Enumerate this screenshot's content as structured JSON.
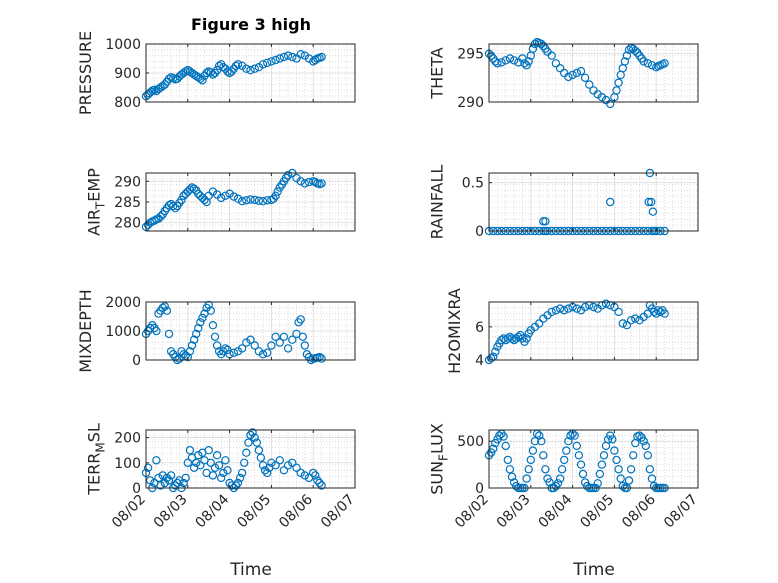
{
  "figure": {
    "title": "Figure 3 high",
    "marker_color": "#0072bd",
    "x_ticks": [
      "08/02",
      "08/03",
      "08/04",
      "08/05",
      "08/06",
      "08/07"
    ],
    "x_label": "Time"
  },
  "chart_data": [
    {
      "type": "scatter",
      "ylabel": "PRESSURE",
      "xlim": [
        0,
        5
      ],
      "ylim": [
        800,
        1000
      ],
      "yticks": [
        "800",
        "900",
        "1000"
      ],
      "ytick_values": [
        800,
        900,
        1000
      ],
      "grid": true,
      "x": [
        0.0,
        0.04,
        0.08,
        0.12,
        0.16,
        0.2,
        0.25,
        0.3,
        0.35,
        0.4,
        0.45,
        0.5,
        0.55,
        0.6,
        0.65,
        0.7,
        0.75,
        0.8,
        0.85,
        0.9,
        0.95,
        1.0,
        1.05,
        1.1,
        1.15,
        1.2,
        1.25,
        1.3,
        1.35,
        1.4,
        1.45,
        1.5,
        1.55,
        1.6,
        1.65,
        1.7,
        1.75,
        1.8,
        1.85,
        1.9,
        1.95,
        2.0,
        2.05,
        2.1,
        2.15,
        2.2,
        2.3,
        2.4,
        2.5,
        2.6,
        2.7,
        2.8,
        2.9,
        3.0,
        3.1,
        3.2,
        3.3,
        3.4,
        3.5,
        3.6,
        3.7,
        3.8,
        3.9,
        4.0,
        4.05,
        4.1,
        4.15,
        4.2
      ],
      "y": [
        820,
        825,
        830,
        835,
        840,
        842,
        838,
        845,
        850,
        855,
        860,
        870,
        880,
        885,
        882,
        878,
        880,
        888,
        895,
        900,
        905,
        910,
        905,
        900,
        895,
        890,
        885,
        880,
        875,
        890,
        900,
        905,
        902,
        895,
        900,
        910,
        925,
        930,
        920,
        915,
        905,
        900,
        905,
        915,
        925,
        930,
        925,
        915,
        910,
        915,
        920,
        930,
        935,
        940,
        945,
        950,
        955,
        960,
        955,
        950,
        965,
        960,
        950,
        940,
        945,
        950,
        952,
        955
      ]
    },
    {
      "type": "scatter",
      "ylabel": "THETA",
      "xlim": [
        0,
        5
      ],
      "ylim": [
        290,
        296
      ],
      "yticks": [
        "290",
        "295"
      ],
      "ytick_values": [
        290,
        295
      ],
      "grid": true,
      "x": [
        0.0,
        0.05,
        0.1,
        0.15,
        0.2,
        0.3,
        0.4,
        0.5,
        0.6,
        0.7,
        0.8,
        0.85,
        0.9,
        0.95,
        1.0,
        1.05,
        1.1,
        1.15,
        1.2,
        1.25,
        1.3,
        1.35,
        1.4,
        1.5,
        1.6,
        1.7,
        1.8,
        1.9,
        2.0,
        2.1,
        2.2,
        2.3,
        2.4,
        2.5,
        2.6,
        2.7,
        2.8,
        2.9,
        3.0,
        3.05,
        3.1,
        3.15,
        3.2,
        3.25,
        3.3,
        3.35,
        3.4,
        3.45,
        3.5,
        3.55,
        3.6,
        3.65,
        3.7,
        3.8,
        3.9,
        4.0,
        4.05,
        4.1,
        4.15,
        4.2
      ],
      "y": [
        295,
        294.8,
        294.5,
        294.2,
        294,
        294.1,
        294.3,
        294.5,
        294.3,
        294.1,
        294.5,
        294,
        293.8,
        294.2,
        294.8,
        295.5,
        296,
        296.2,
        296.1,
        296,
        295.8,
        295.5,
        295.2,
        294.8,
        294,
        293.5,
        293,
        292.6,
        292.8,
        293,
        293.2,
        292.5,
        291.8,
        291.2,
        290.8,
        290.5,
        290.2,
        289.8,
        290.5,
        291.2,
        292,
        292.8,
        293.5,
        294.2,
        294.8,
        295.4,
        295.6,
        295.5,
        295.3,
        295.1,
        294.8,
        294.5,
        294.2,
        294,
        293.8,
        293.6,
        293.7,
        293.8,
        293.9,
        294
      ]
    },
    {
      "type": "scatter",
      "ylabel": "AIR",
      "ylabel_sub": "T",
      "ylabel_rest": "EMP",
      "xlim": [
        0,
        5
      ],
      "ylim": [
        278,
        292
      ],
      "yticks": [
        "280",
        "285",
        "290"
      ],
      "ytick_values": [
        280,
        285,
        290
      ],
      "grid": true,
      "x": [
        0.0,
        0.05,
        0.1,
        0.15,
        0.2,
        0.25,
        0.3,
        0.35,
        0.4,
        0.45,
        0.5,
        0.55,
        0.6,
        0.65,
        0.7,
        0.75,
        0.8,
        0.85,
        0.9,
        0.95,
        1.0,
        1.05,
        1.1,
        1.15,
        1.2,
        1.25,
        1.3,
        1.35,
        1.4,
        1.45,
        1.5,
        1.6,
        1.7,
        1.8,
        1.9,
        2.0,
        2.1,
        2.2,
        2.3,
        2.4,
        2.5,
        2.6,
        2.7,
        2.8,
        2.9,
        3.0,
        3.05,
        3.1,
        3.15,
        3.2,
        3.25,
        3.3,
        3.35,
        3.4,
        3.5,
        3.6,
        3.7,
        3.8,
        3.9,
        4.0,
        4.05,
        4.1,
        4.15,
        4.2
      ],
      "y": [
        279,
        279.5,
        280,
        280.3,
        280.5,
        280.8,
        281,
        281.5,
        282,
        282.8,
        283.5,
        284.2,
        284.5,
        284,
        283.5,
        284,
        284.8,
        285.5,
        286.5,
        287,
        287.5,
        288,
        288.5,
        288.2,
        287.8,
        287,
        286.5,
        286,
        285.5,
        285,
        286.5,
        287.5,
        286.8,
        286,
        286.5,
        287,
        286.3,
        285.8,
        285.2,
        285.4,
        285.6,
        285.5,
        285.3,
        285.2,
        285.4,
        285.5,
        285.8,
        286.5,
        287.5,
        288.5,
        289.2,
        290,
        290.8,
        291.5,
        292,
        290.8,
        290,
        289.5,
        289.8,
        290,
        289.8,
        289.5,
        289.3,
        289.5
      ]
    },
    {
      "type": "scatter",
      "ylabel": "RAINFALL",
      "xlim": [
        0,
        5
      ],
      "ylim": [
        0,
        0.6
      ],
      "yticks": [
        "0",
        "0.5"
      ],
      "ytick_values": [
        0,
        0.5
      ],
      "grid": true,
      "x": [
        0.0,
        0.1,
        0.2,
        0.3,
        0.4,
        0.5,
        0.6,
        0.7,
        0.8,
        0.9,
        1.0,
        1.1,
        1.2,
        1.3,
        1.35,
        1.4,
        1.5,
        1.6,
        1.7,
        1.8,
        1.9,
        2.0,
        2.1,
        2.2,
        2.3,
        2.4,
        2.5,
        2.6,
        2.7,
        2.8,
        2.9,
        3.0,
        3.1,
        3.2,
        3.3,
        3.4,
        3.5,
        3.6,
        3.7,
        3.8,
        3.9,
        4.0,
        4.1,
        4.2,
        1.3,
        1.35,
        2.9,
        3.82,
        3.85,
        3.88,
        3.92,
        3.95
      ],
      "y": [
        0,
        0,
        0,
        0,
        0,
        0,
        0,
        0,
        0,
        0,
        0,
        0,
        0,
        0,
        0,
        0,
        0,
        0,
        0,
        0,
        0,
        0,
        0,
        0,
        0,
        0,
        0,
        0,
        0,
        0,
        0,
        0,
        0,
        0,
        0,
        0,
        0,
        0,
        0,
        0,
        0,
        0,
        0,
        0,
        0.1,
        0.1,
        0.3,
        0.3,
        0.6,
        0.3,
        0.2,
        0
      ]
    },
    {
      "type": "scatter",
      "ylabel": "MIXDEPTH",
      "xlim": [
        0,
        5
      ],
      "ylim": [
        0,
        2000
      ],
      "yticks": [
        "0",
        "1000",
        "2000"
      ],
      "ytick_values": [
        0,
        1000,
        2000
      ],
      "grid": true,
      "x": [
        0.0,
        0.05,
        0.1,
        0.15,
        0.2,
        0.25,
        0.3,
        0.35,
        0.4,
        0.45,
        0.5,
        0.55,
        0.6,
        0.65,
        0.7,
        0.75,
        0.8,
        0.85,
        0.9,
        0.95,
        1.0,
        1.05,
        1.1,
        1.15,
        1.2,
        1.25,
        1.3,
        1.35,
        1.4,
        1.45,
        1.5,
        1.55,
        1.6,
        1.65,
        1.7,
        1.75,
        1.8,
        1.85,
        1.9,
        1.95,
        2.0,
        2.1,
        2.2,
        2.3,
        2.4,
        2.5,
        2.6,
        2.7,
        2.8,
        2.9,
        3.0,
        3.1,
        3.2,
        3.3,
        3.4,
        3.5,
        3.6,
        3.65,
        3.7,
        3.75,
        3.8,
        3.85,
        3.9,
        3.95,
        4.0,
        4.05,
        4.1,
        4.15,
        4.2
      ],
      "y": [
        900,
        1000,
        1100,
        1200,
        1100,
        1000,
        1600,
        1700,
        1800,
        1850,
        1700,
        900,
        300,
        200,
        100,
        0,
        50,
        300,
        200,
        150,
        100,
        300,
        500,
        700,
        900,
        1100,
        1300,
        1450,
        1600,
        1800,
        1900,
        1700,
        1200,
        800,
        500,
        300,
        200,
        300,
        400,
        350,
        200,
        250,
        300,
        400,
        600,
        700,
        500,
        300,
        200,
        250,
        500,
        800,
        600,
        800,
        400,
        700,
        900,
        1300,
        1400,
        800,
        500,
        200,
        100,
        0,
        50,
        60,
        80,
        100,
        50
      ]
    },
    {
      "type": "scatter",
      "ylabel": "H2OMIXRA",
      "xlim": [
        0,
        5
      ],
      "ylim": [
        4,
        7.5
      ],
      "yticks": [
        "4",
        "6"
      ],
      "ytick_values": [
        4,
        6
      ],
      "grid": true,
      "x": [
        0.0,
        0.05,
        0.1,
        0.15,
        0.2,
        0.25,
        0.3,
        0.35,
        0.4,
        0.45,
        0.5,
        0.55,
        0.6,
        0.65,
        0.7,
        0.75,
        0.8,
        0.85,
        0.9,
        0.95,
        1.0,
        1.1,
        1.2,
        1.3,
        1.4,
        1.5,
        1.6,
        1.7,
        1.8,
        1.9,
        2.0,
        2.1,
        2.2,
        2.3,
        2.4,
        2.5,
        2.6,
        2.7,
        2.8,
        2.9,
        3.0,
        3.1,
        3.2,
        3.3,
        3.4,
        3.5,
        3.6,
        3.7,
        3.8,
        3.85,
        3.9,
        3.95,
        4.0,
        4.05,
        4.1,
        4.15,
        4.2
      ],
      "y": [
        4,
        4.1,
        4.2,
        4.5,
        4.8,
        5.0,
        5.2,
        5.3,
        5.2,
        5.3,
        5.4,
        5.3,
        5.2,
        5.3,
        5.4,
        5.5,
        5.3,
        5.1,
        5.3,
        5.6,
        5.8,
        6.0,
        6.2,
        6.5,
        6.7,
        6.9,
        7.0,
        7.1,
        7.0,
        7.1,
        7.2,
        7.1,
        7.0,
        7.2,
        7.3,
        7.2,
        7.1,
        7.3,
        7.4,
        7.3,
        7.2,
        6.9,
        6.2,
        6.1,
        6.4,
        6.5,
        6.4,
        6.6,
        6.8,
        7.3,
        7.1,
        6.9,
        6.8,
        7.0,
        6.9,
        7.0,
        6.8
      ]
    },
    {
      "type": "scatter",
      "ylabel": "TERR",
      "ylabel_sub": "M",
      "ylabel_rest": "SL",
      "xlim": [
        0,
        5
      ],
      "ylim": [
        0,
        230
      ],
      "yticks": [
        "0",
        "100",
        "200"
      ],
      "ytick_values": [
        0,
        100,
        200
      ],
      "grid": true,
      "x": [
        0.0,
        0.05,
        0.1,
        0.15,
        0.2,
        0.25,
        0.3,
        0.35,
        0.4,
        0.45,
        0.5,
        0.55,
        0.6,
        0.65,
        0.7,
        0.75,
        0.8,
        0.85,
        0.9,
        0.95,
        1.0,
        1.05,
        1.1,
        1.15,
        1.2,
        1.25,
        1.3,
        1.35,
        1.4,
        1.45,
        1.5,
        1.55,
        1.6,
        1.65,
        1.7,
        1.75,
        1.8,
        1.85,
        1.9,
        1.95,
        2.0,
        2.05,
        2.1,
        2.15,
        2.2,
        2.25,
        2.3,
        2.35,
        2.4,
        2.45,
        2.5,
        2.55,
        2.6,
        2.65,
        2.7,
        2.75,
        2.8,
        2.85,
        2.9,
        2.95,
        3.0,
        3.1,
        3.2,
        3.3,
        3.4,
        3.5,
        3.6,
        3.7,
        3.8,
        3.9,
        4.0,
        4.05,
        4.1,
        4.15,
        4.2
      ],
      "y": [
        60,
        80,
        30,
        0,
        20,
        110,
        40,
        10,
        50,
        20,
        40,
        30,
        50,
        0,
        10,
        20,
        30,
        0,
        20,
        40,
        100,
        150,
        120,
        80,
        100,
        130,
        90,
        140,
        110,
        60,
        150,
        100,
        50,
        80,
        130,
        90,
        40,
        60,
        110,
        70,
        20,
        10,
        0,
        10,
        20,
        40,
        60,
        100,
        140,
        180,
        210,
        220,
        200,
        180,
        150,
        120,
        90,
        70,
        60,
        80,
        100,
        90,
        110,
        70,
        90,
        100,
        80,
        60,
        50,
        40,
        60,
        50,
        30,
        20,
        10
      ]
    },
    {
      "type": "scatter",
      "ylabel": "SUN",
      "ylabel_sub": "F",
      "ylabel_rest": "LUX",
      "xlim": [
        0,
        5
      ],
      "ylim": [
        0,
        620
      ],
      "yticks": [
        "0",
        "500"
      ],
      "ytick_values": [
        0,
        500
      ],
      "grid": true,
      "x": [
        0.0,
        0.05,
        0.1,
        0.15,
        0.2,
        0.25,
        0.3,
        0.35,
        0.4,
        0.45,
        0.5,
        0.55,
        0.6,
        0.65,
        0.7,
        0.75,
        0.8,
        0.85,
        0.9,
        0.95,
        1.0,
        1.05,
        1.1,
        1.15,
        1.2,
        1.25,
        1.3,
        1.35,
        1.4,
        1.45,
        1.5,
        1.55,
        1.6,
        1.65,
        1.7,
        1.75,
        1.8,
        1.85,
        1.9,
        1.95,
        2.0,
        2.05,
        2.1,
        2.15,
        2.2,
        2.25,
        2.3,
        2.35,
        2.4,
        2.45,
        2.5,
        2.55,
        2.6,
        2.65,
        2.7,
        2.75,
        2.8,
        2.85,
        2.9,
        2.95,
        3.0,
        3.05,
        3.1,
        3.15,
        3.2,
        3.25,
        3.3,
        3.35,
        3.4,
        3.45,
        3.5,
        3.55,
        3.6,
        3.65,
        3.7,
        3.75,
        3.8,
        3.85,
        3.9,
        3.95,
        4.0,
        4.05,
        4.1,
        4.15,
        4.2
      ],
      "y": [
        350,
        380,
        420,
        480,
        520,
        560,
        580,
        550,
        450,
        300,
        200,
        120,
        60,
        20,
        0,
        0,
        0,
        0,
        100,
        200,
        300,
        400,
        500,
        580,
        560,
        500,
        350,
        200,
        100,
        60,
        0,
        0,
        20,
        50,
        100,
        200,
        300,
        400,
        500,
        560,
        580,
        560,
        450,
        350,
        250,
        150,
        60,
        20,
        0,
        0,
        0,
        0,
        50,
        150,
        250,
        350,
        450,
        520,
        560,
        520,
        400,
        300,
        200,
        100,
        20,
        0,
        0,
        80,
        200,
        350,
        480,
        550,
        560,
        540,
        500,
        450,
        350,
        200,
        100,
        20,
        0,
        0,
        0,
        0,
        0
      ]
    }
  ]
}
